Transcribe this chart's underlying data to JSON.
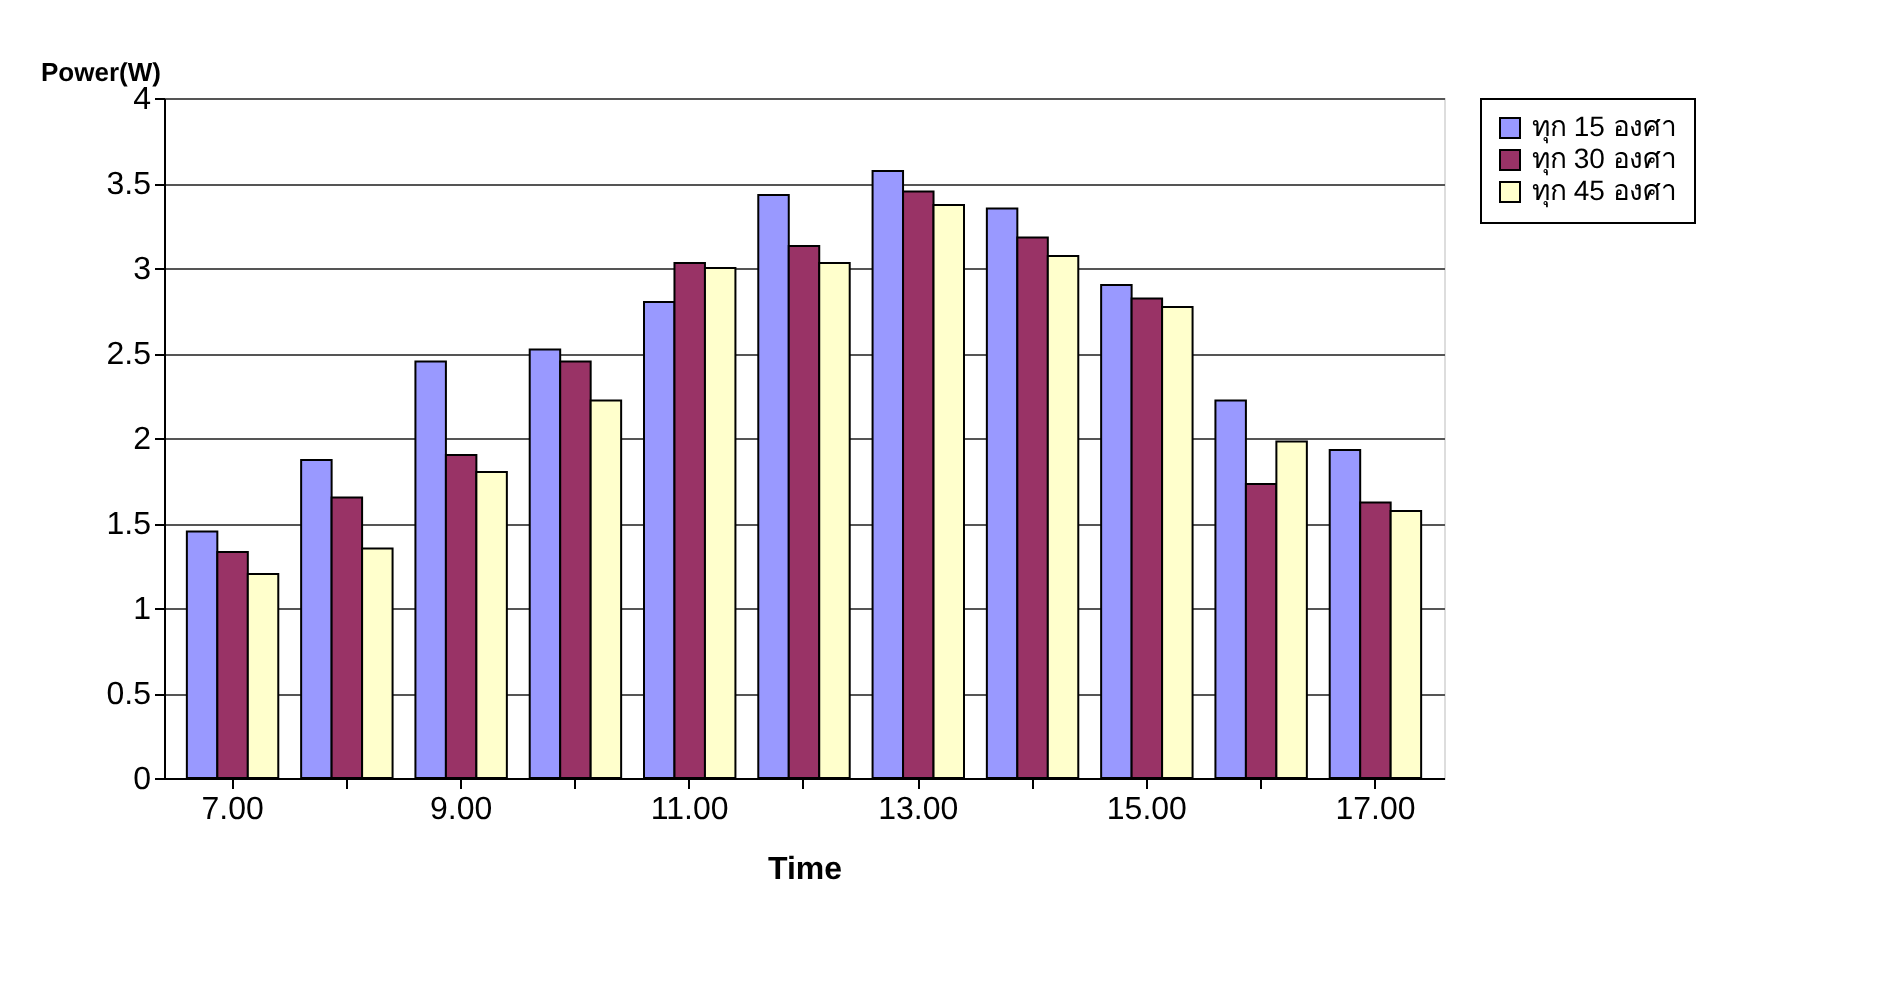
{
  "chart_data": {
    "type": "bar",
    "xlabel": "Time",
    "ylabel": "Power(W)",
    "categories": [
      "7.00",
      null,
      "9.00",
      null,
      "11.00",
      null,
      "13.00",
      null,
      "15.00",
      null,
      "17.00"
    ],
    "series": [
      {
        "name": "ทุก 15 องศา",
        "color": "#9999ff",
        "values": [
          1.45,
          1.87,
          2.45,
          2.52,
          2.8,
          3.43,
          3.57,
          3.35,
          2.9,
          2.22,
          1.93
        ]
      },
      {
        "name": "ทุก 30 องศา",
        "color": "#993366",
        "values": [
          1.33,
          1.65,
          1.9,
          2.45,
          3.03,
          3.13,
          3.45,
          3.18,
          2.82,
          1.73,
          1.62
        ]
      },
      {
        "name": "ทุก 45 องศา",
        "color": "#ffffcc",
        "values": [
          1.2,
          1.35,
          1.8,
          2.22,
          3.0,
          3.03,
          3.37,
          3.07,
          2.77,
          1.98,
          1.57
        ]
      }
    ],
    "ylim": [
      0,
      4
    ],
    "yticks": [
      0,
      0.5,
      1,
      1.5,
      2,
      2.5,
      3,
      3.5,
      4
    ],
    "grid": "y",
    "legend": "right"
  }
}
